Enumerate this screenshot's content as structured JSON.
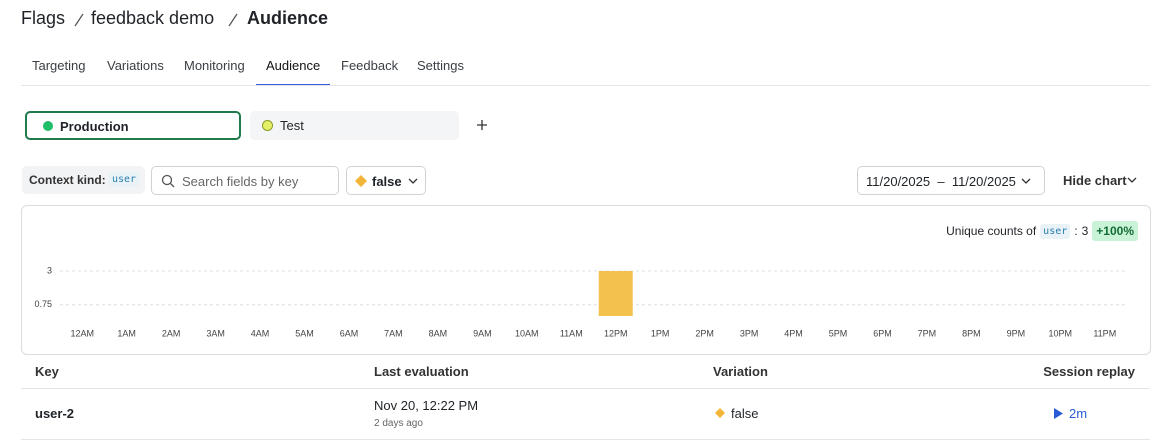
{
  "breadcrumb": [
    "Flags",
    "feedback demo",
    "Audience"
  ],
  "tabs": [
    "Targeting",
    "Variations",
    "Monitoring",
    "Audience",
    "Feedback",
    "Settings"
  ],
  "active_tab": 3,
  "environments": [
    {
      "name": "Production",
      "color": "#1fbf6a"
    },
    {
      "name": "Test",
      "color": "#e4f06a"
    }
  ],
  "filters": {
    "context_kind_label": "Context kind:",
    "context_kind": "user",
    "search_placeholder": "Search fields by key",
    "variation": "false",
    "date_from": "11/20/2025",
    "date_separator": "–",
    "date_to": "11/20/2025",
    "hide_chart": "Hide chart"
  },
  "chart_data": {
    "type": "bar",
    "summary": {
      "label": "Unique counts of",
      "kind": "user",
      "separator": ":",
      "count": 3,
      "change": "+100%"
    },
    "categories": [
      "12AM",
      "1AM",
      "2AM",
      "3AM",
      "4AM",
      "5AM",
      "6AM",
      "7AM",
      "8AM",
      "9AM",
      "10AM",
      "11AM",
      "12PM",
      "1PM",
      "2PM",
      "3PM",
      "4PM",
      "5PM",
      "6PM",
      "7PM",
      "8PM",
      "9PM",
      "10PM",
      "11PM"
    ],
    "values": [
      0,
      0,
      0,
      0,
      0,
      0,
      0,
      0,
      0,
      0,
      0,
      0,
      3,
      0,
      0,
      0,
      0,
      0,
      0,
      0,
      0,
      0,
      0,
      0
    ],
    "color": "#f2c14e",
    "ylim": [
      0,
      3
    ],
    "yticks": [
      3,
      0.75
    ],
    "grid": true
  },
  "table": {
    "columns": [
      "Key",
      "Last evaluation",
      "Variation",
      "Session replay"
    ],
    "rows": [
      {
        "key": "user-2",
        "last_evaluation": "Nov 20, 12:22 PM",
        "relative": "2 days ago",
        "variation": "false",
        "replay": "2m"
      }
    ]
  }
}
